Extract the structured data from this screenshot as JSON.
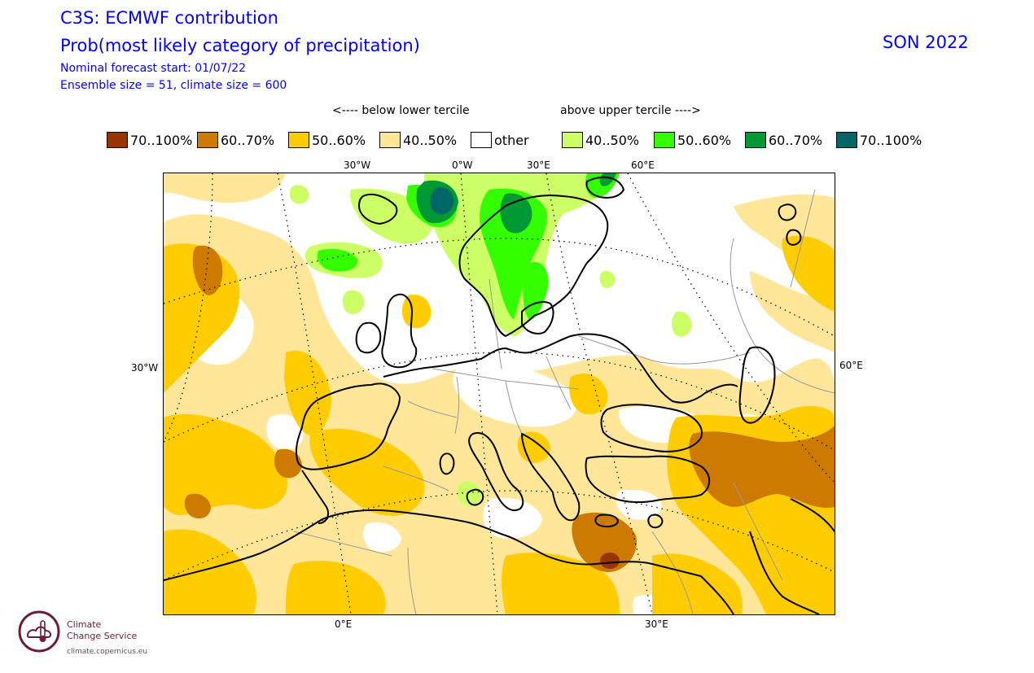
{
  "header": {
    "title_line1": "C3S: ECMWF contribution",
    "title_line2": "Prob(most likely category of precipitation)",
    "subtitle_line1": "Nominal forecast start: 01/07/22",
    "subtitle_line2": "Ensemble size = 51, climate size = 600",
    "season": "SON 2022"
  },
  "legend": {
    "below_label": "<---- below lower tercile",
    "above_label": "above upper tercile ---->",
    "items": [
      {
        "label": "70..100%",
        "color": "#993300"
      },
      {
        "label": "60..70%",
        "color": "#cc7a00"
      },
      {
        "label": "50..60%",
        "color": "#ffcc00"
      },
      {
        "label": "40..50%",
        "color": "#ffe699"
      },
      {
        "label": "other",
        "color": "#ffffff"
      },
      {
        "label": "40..50%",
        "color": "#ccff66"
      },
      {
        "label": "50..60%",
        "color": "#33ff00"
      },
      {
        "label": "60..70%",
        "color": "#009933"
      },
      {
        "label": "70..100%",
        "color": "#006666"
      }
    ]
  },
  "axes": {
    "top_labels": [
      "30°W",
      "0°W",
      "30°E",
      "60°E"
    ],
    "left_label": "30°W",
    "right_label": "60°E",
    "bottom_labels": [
      "0°E",
      "30°E"
    ]
  },
  "logo": {
    "name_line1": "Climate",
    "name_line2": "Change Service",
    "url": "climate.copernicus.eu",
    "icon": "thermometer-cloud-icon"
  }
}
